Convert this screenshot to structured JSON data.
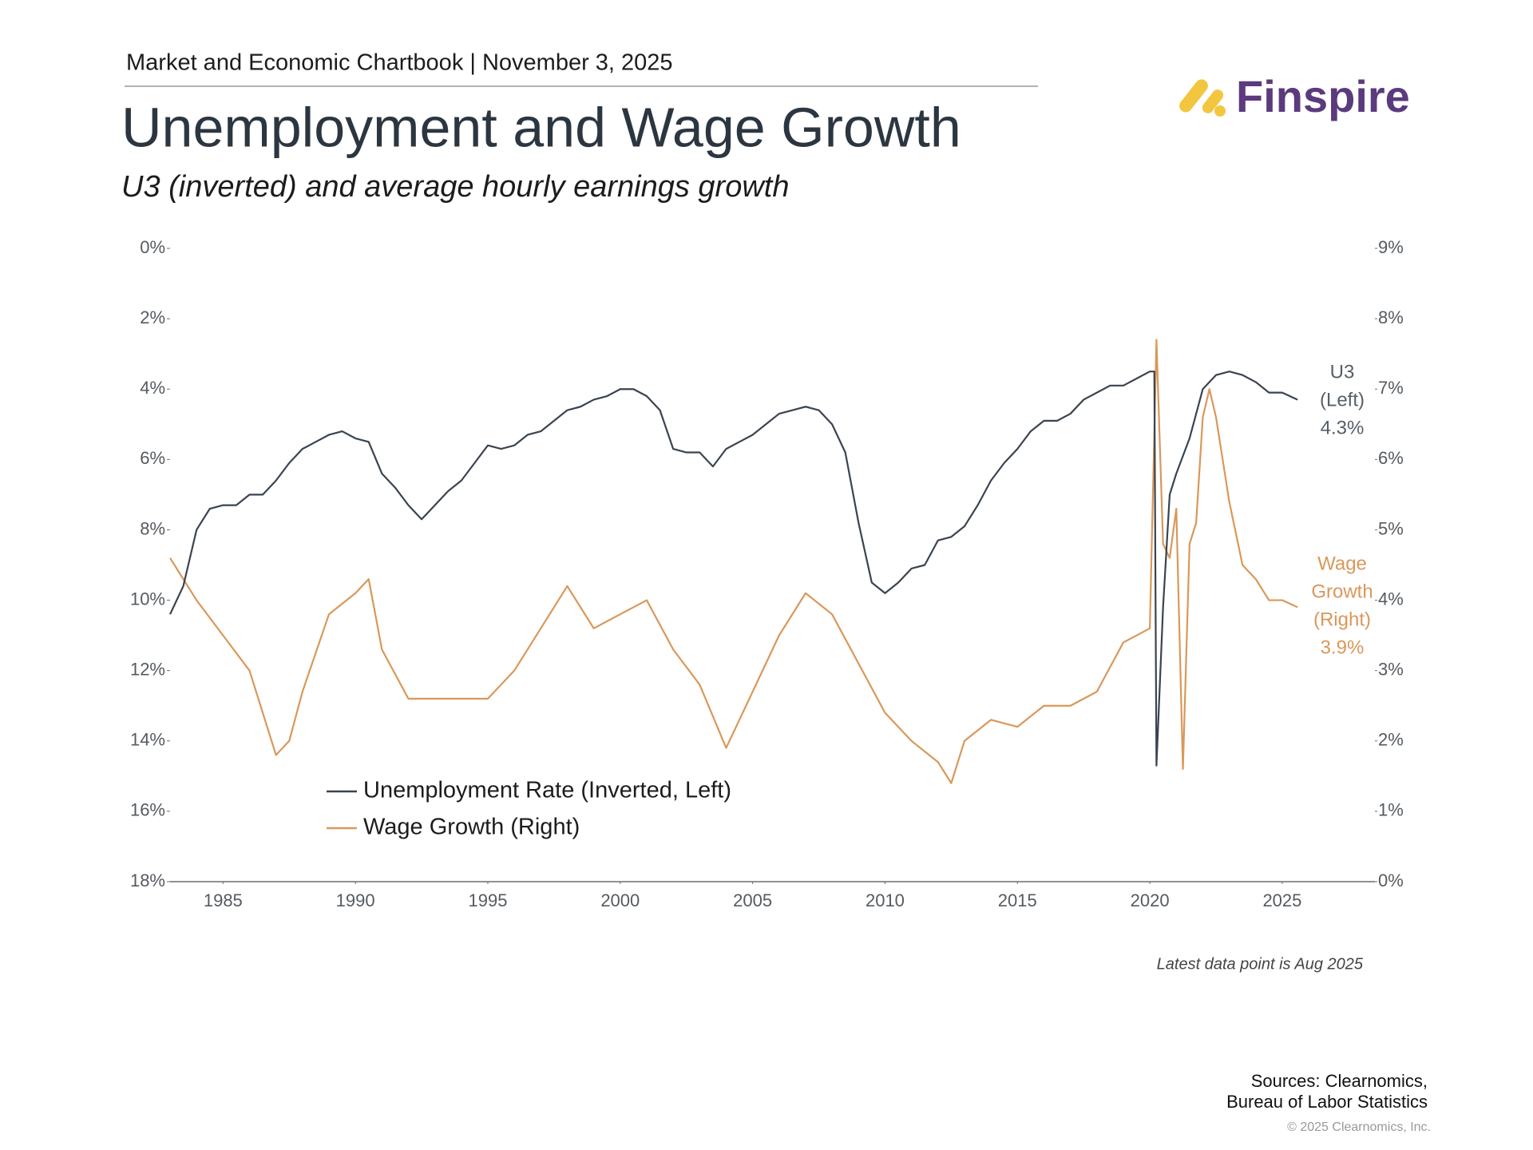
{
  "header": "Market and Economic Chartbook | November 3, 2025",
  "logo": "Finspire",
  "chart_data": {
    "type": "line",
    "title": "Unemployment and Wage Growth",
    "subtitle": "U3 (inverted) and average hourly earnings growth",
    "xlim": [
      1983,
      2028.5
    ],
    "xticks": [
      1985,
      1990,
      1995,
      2000,
      2005,
      2010,
      2015,
      2020,
      2025
    ],
    "ylim": [
      18,
      0
    ],
    "yticks": [
      {
        "value": 0,
        "label": "0%"
      },
      {
        "value": 2,
        "label": "2%"
      },
      {
        "value": 4,
        "label": "4%"
      },
      {
        "value": 6,
        "label": "6%"
      },
      {
        "value": 8,
        "label": "8%"
      },
      {
        "value": 10,
        "label": "10%"
      },
      {
        "value": 12,
        "label": "12%"
      },
      {
        "value": 14,
        "label": "14%"
      },
      {
        "value": 16,
        "label": "16%"
      },
      {
        "value": 18,
        "label": "18%"
      }
    ],
    "y2lim": [
      0,
      9
    ],
    "y2ticks": [
      {
        "value": 0,
        "label": "0%"
      },
      {
        "value": 1,
        "label": "1%"
      },
      {
        "value": 2,
        "label": "2%"
      },
      {
        "value": 3,
        "label": "3%"
      },
      {
        "value": 4,
        "label": "4%"
      },
      {
        "value": 5,
        "label": "5%"
      },
      {
        "value": 6,
        "label": "6%"
      },
      {
        "value": 7,
        "label": "7%"
      },
      {
        "value": 8,
        "label": "8%"
      },
      {
        "value": 9,
        "label": "9%"
      }
    ],
    "grid": false,
    "series": [
      {
        "name": "Unemployment Rate (Inverted, Left)",
        "color": "#3a4450",
        "axis": "y",
        "end_label": [
          "U3",
          "(Left)",
          "4.3%"
        ],
        "x": [
          1983.0,
          1983.5,
          1984.0,
          1984.5,
          1985.0,
          1985.5,
          1986.0,
          1986.5,
          1987.0,
          1987.5,
          1988.0,
          1988.5,
          1989.0,
          1989.5,
          1990.0,
          1990.5,
          1991.0,
          1991.5,
          1992.0,
          1992.5,
          1993.0,
          1993.5,
          1994.0,
          1994.5,
          1995.0,
          1995.5,
          1996.0,
          1996.5,
          1997.0,
          1997.5,
          1998.0,
          1998.5,
          1999.0,
          1999.5,
          2000.0,
          2000.5,
          2001.0,
          2001.5,
          2002.0,
          2002.5,
          2003.0,
          2003.5,
          2004.0,
          2004.5,
          2005.0,
          2005.5,
          2006.0,
          2006.5,
          2007.0,
          2007.5,
          2008.0,
          2008.5,
          2009.0,
          2009.5,
          2010.0,
          2010.5,
          2011.0,
          2011.5,
          2012.0,
          2012.5,
          2013.0,
          2013.5,
          2014.0,
          2014.5,
          2015.0,
          2015.5,
          2016.0,
          2016.5,
          2017.0,
          2017.5,
          2018.0,
          2018.5,
          2019.0,
          2019.5,
          2020.0,
          2020.17,
          2020.25,
          2020.5,
          2020.75,
          2021.0,
          2021.5,
          2022.0,
          2022.5,
          2023.0,
          2023.5,
          2024.0,
          2024.5,
          2025.0,
          2025.58
        ],
        "values": [
          10.4,
          9.6,
          8.0,
          7.4,
          7.3,
          7.3,
          7.0,
          7.0,
          6.6,
          6.1,
          5.7,
          5.5,
          5.3,
          5.2,
          5.4,
          5.5,
          6.4,
          6.8,
          7.3,
          7.7,
          7.3,
          6.9,
          6.6,
          6.1,
          5.6,
          5.7,
          5.6,
          5.3,
          5.2,
          4.9,
          4.6,
          4.5,
          4.3,
          4.2,
          4.0,
          4.0,
          4.2,
          4.6,
          5.7,
          5.8,
          5.8,
          6.2,
          5.7,
          5.5,
          5.3,
          5.0,
          4.7,
          4.6,
          4.5,
          4.6,
          5.0,
          5.8,
          7.8,
          9.5,
          9.8,
          9.5,
          9.1,
          9.0,
          8.3,
          8.2,
          7.9,
          7.3,
          6.6,
          6.1,
          5.7,
          5.2,
          4.9,
          4.9,
          4.7,
          4.3,
          4.1,
          3.9,
          3.9,
          3.7,
          3.5,
          3.5,
          14.7,
          10.2,
          7.0,
          6.4,
          5.4,
          4.0,
          3.6,
          3.5,
          3.6,
          3.8,
          4.1,
          4.1,
          4.3
        ]
      },
      {
        "name": "Wage Growth (Right)",
        "color": "#d9985a",
        "axis": "y2",
        "end_label": [
          "Wage",
          "Growth",
          "(Right)",
          "3.9%"
        ],
        "x": [
          1983.0,
          1983.5,
          1984.0,
          1985.0,
          1986.0,
          1987.0,
          1987.5,
          1988.0,
          1989.0,
          1990.0,
          1990.5,
          1991.0,
          1992.0,
          1993.0,
          1994.0,
          1995.0,
          1996.0,
          1997.0,
          1998.0,
          1999.0,
          2000.0,
          2001.0,
          2002.0,
          2003.0,
          2004.0,
          2005.0,
          2006.0,
          2007.0,
          2008.0,
          2009.0,
          2010.0,
          2011.0,
          2012.0,
          2012.5,
          2013.0,
          2014.0,
          2015.0,
          2016.0,
          2017.0,
          2018.0,
          2019.0,
          2020.0,
          2020.25,
          2020.5,
          2020.75,
          2021.0,
          2021.25,
          2021.5,
          2021.75,
          2022.0,
          2022.25,
          2022.5,
          2023.0,
          2023.5,
          2024.0,
          2024.5,
          2025.0,
          2025.58
        ],
        "values": [
          4.6,
          4.3,
          4.0,
          3.5,
          3.0,
          1.8,
          2.0,
          2.7,
          3.8,
          4.1,
          4.3,
          3.3,
          2.6,
          2.6,
          2.6,
          2.6,
          3.0,
          3.6,
          4.2,
          3.6,
          3.8,
          4.0,
          3.3,
          2.8,
          1.9,
          2.7,
          3.5,
          4.1,
          3.8,
          3.1,
          2.4,
          2.0,
          1.7,
          1.4,
          2.0,
          2.3,
          2.2,
          2.5,
          2.5,
          2.7,
          3.4,
          3.6,
          7.7,
          4.8,
          4.6,
          5.3,
          1.6,
          4.8,
          5.1,
          6.6,
          7.0,
          6.6,
          5.4,
          4.5,
          4.3,
          4.0,
          4.0,
          3.9
        ]
      }
    ],
    "note": "Latest data point is Aug 2025"
  },
  "sources": [
    "Sources: Clearnomics,",
    "Bureau of Labor Statistics"
  ],
  "copyright": "© 2025 Clearnomics, Inc."
}
